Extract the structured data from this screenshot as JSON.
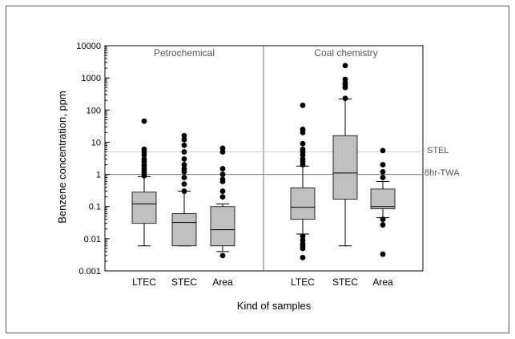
{
  "chart_data": {
    "type": "box",
    "ylabel": "Benzene concentration,  ppm",
    "xlabel": "Kind of samples",
    "yscale": "log",
    "ylim": [
      0.001,
      10000
    ],
    "yticks": [
      "0.001",
      "0.01",
      "0.1",
      "1",
      "10",
      "100",
      "1000",
      "10000"
    ],
    "reference_lines": [
      {
        "label": "STEL",
        "value": 5
      },
      {
        "label": "8hr-TWA",
        "value": 1
      }
    ],
    "panels": [
      {
        "title": "Petrochemical",
        "groups": [
          {
            "name": "LTEC",
            "whisker_low": 0.006,
            "q1": 0.03,
            "median": 0.12,
            "q3": 0.28,
            "whisker_high": 0.85,
            "outliers": [
              45,
              6,
              5,
              4,
              3,
              2.5,
              2,
              1.8,
              1.5,
              1.3,
              1.1,
              0.9
            ]
          },
          {
            "name": "STEC",
            "whisker_low": 0.006,
            "q1": 0.006,
            "median": 0.032,
            "q3": 0.06,
            "whisker_high": 0.3,
            "outliers": [
              16,
              12,
              8,
              5,
              3,
              2,
              1.5,
              1.2,
              0.8,
              0.5,
              0.3
            ]
          },
          {
            "name": "Area",
            "whisker_low": 0.004,
            "q1": 0.006,
            "median": 0.019,
            "q3": 0.1,
            "whisker_high": 0.12,
            "outliers": [
              6.5,
              5,
              1.5,
              1,
              0.7,
              0.6,
              0.3,
              0.2,
              0.003
            ]
          }
        ]
      },
      {
        "title": "Coal chemistry",
        "groups": [
          {
            "name": "LTEC",
            "whisker_low": 0.014,
            "q1": 0.04,
            "median": 0.095,
            "q3": 0.38,
            "whisker_high": 1.8,
            "outliers": [
              140,
              25,
              20,
              9,
              6,
              5,
              4,
              3,
              2.5,
              2,
              0.012,
              0.009,
              0.007,
              0.006,
              0.005,
              0.0026
            ]
          },
          {
            "name": "STEC",
            "whisker_low": 0.006,
            "q1": 0.17,
            "median": 1.1,
            "q3": 16,
            "whisker_high": 220,
            "outliers": [
              2400,
              900,
              700,
              600,
              500,
              230
            ]
          },
          {
            "name": "Area",
            "whisker_low": 0.045,
            "q1": 0.085,
            "median": 0.1,
            "q3": 0.35,
            "whisker_high": 0.6,
            "outliers": [
              5.5,
              2,
              1.2,
              0.8,
              0.04,
              0.027,
              0.0033
            ]
          }
        ]
      }
    ]
  }
}
